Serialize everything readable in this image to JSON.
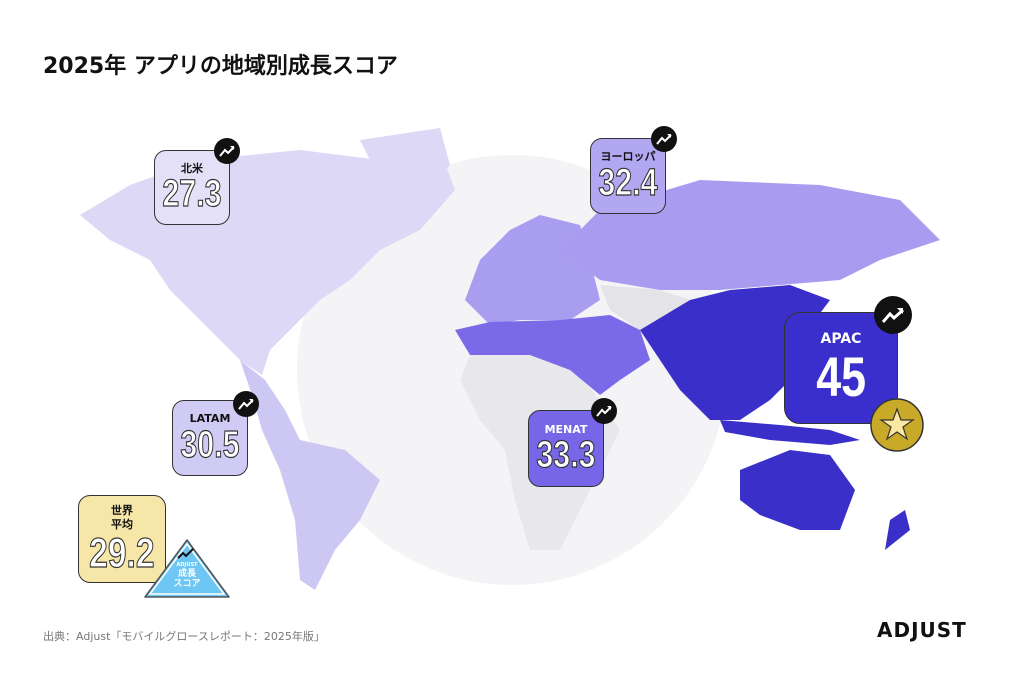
{
  "title": "2025年 アプリの地域別成長スコア",
  "regions": [
    {
      "label": "北米",
      "value": "27.3",
      "color": "#e3e0f8"
    },
    {
      "label": "ヨーロッパ",
      "value": "32.4",
      "color": "#b2a8f1"
    },
    {
      "label": "LATAM",
      "value": "30.5",
      "color": "#d0cbf5"
    },
    {
      "label": "MENAT",
      "value": "33.3",
      "color": "#7866e8"
    },
    {
      "label": "APAC",
      "value": "45",
      "color": "#3a2fcc"
    }
  ],
  "world_average": {
    "label_line1": "世界",
    "label_line2": "平均",
    "value": "29.2",
    "color": "#f6e6a8"
  },
  "growth_badge": {
    "brand": "ADJUST",
    "line1": "成長",
    "line2": "スコア",
    "color": "#6ec6f2"
  },
  "icons": {
    "trend": "trending-up-icon",
    "top": "star-medal-icon"
  },
  "source": "出典：Adjust「モバイルグロースレポート：2025年版」",
  "logo": "ADJUST"
}
